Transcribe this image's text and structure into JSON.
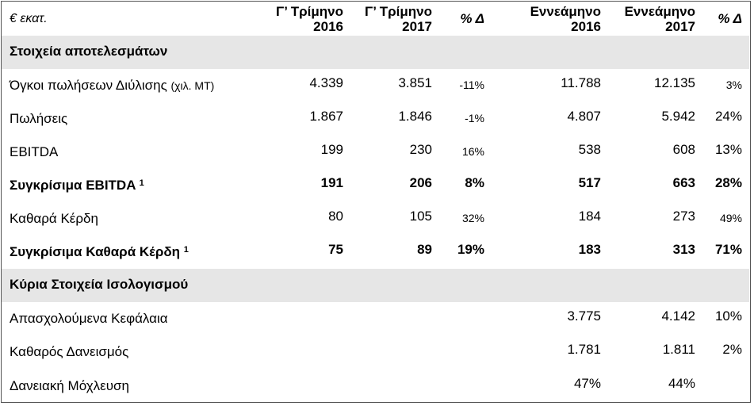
{
  "header": {
    "unit_label": "€ εκατ.",
    "cols": [
      {
        "line1": "Γ’ Τρίμηνο",
        "line2": "2016"
      },
      {
        "line1": "Γ’ Τρίμηνο",
        "line2": "2017"
      },
      {
        "line1": "% Δ",
        "line2": ""
      },
      {
        "line1": "Εννεάμηνο",
        "line2": "2016"
      },
      {
        "line1": "Εννεάμηνο",
        "line2": "2017"
      },
      {
        "line1": "% Δ",
        "line2": ""
      }
    ]
  },
  "sections": {
    "results_title": "Στοιχεία αποτελεσμάτων",
    "balance_title": "Κύρια Στοιχεία Ισολογισμού"
  },
  "rows": {
    "volumes": {
      "label": "Όγκοι πωλήσεων Διύλισης",
      "unit": "(χιλ. ΜΤ)",
      "v": [
        "4.339",
        "3.851",
        "-11%",
        "11.788",
        "12.135",
        "3%"
      ]
    },
    "sales": {
      "label": "Πωλήσεις",
      "v": [
        "1.867",
        "1.846",
        "-1%",
        "4.807",
        "5.942",
        "24%"
      ]
    },
    "ebitda": {
      "label": "EBITDA",
      "v": [
        "199",
        "230",
        "16%",
        "538",
        "608",
        "13%"
      ]
    },
    "adj_ebitda": {
      "label": "Συγκρίσιμα EBITDA",
      "sup": "1",
      "v": [
        "191",
        "206",
        "8%",
        "517",
        "663",
        "28%"
      ]
    },
    "net_income": {
      "label": "Καθαρά Κέρδη",
      "v": [
        "80",
        "105",
        "32%",
        "184",
        "273",
        "49%"
      ]
    },
    "adj_net_income": {
      "label": "Συγκρίσιμα Καθαρά Κέρδη",
      "sup": "1",
      "v": [
        "75",
        "89",
        "19%",
        "183",
        "313",
        "71%"
      ]
    },
    "capital": {
      "label": "Απασχολούμενα Κεφάλαια",
      "v": [
        "3.775",
        "4.142",
        "10%"
      ]
    },
    "net_debt": {
      "label": "Καθαρός Δανεισμός",
      "v": [
        "1.781",
        "1.811",
        "2%"
      ]
    },
    "gearing": {
      "label": "Δανειακή Μόχλευση",
      "v": [
        "47%",
        "44%"
      ]
    }
  }
}
